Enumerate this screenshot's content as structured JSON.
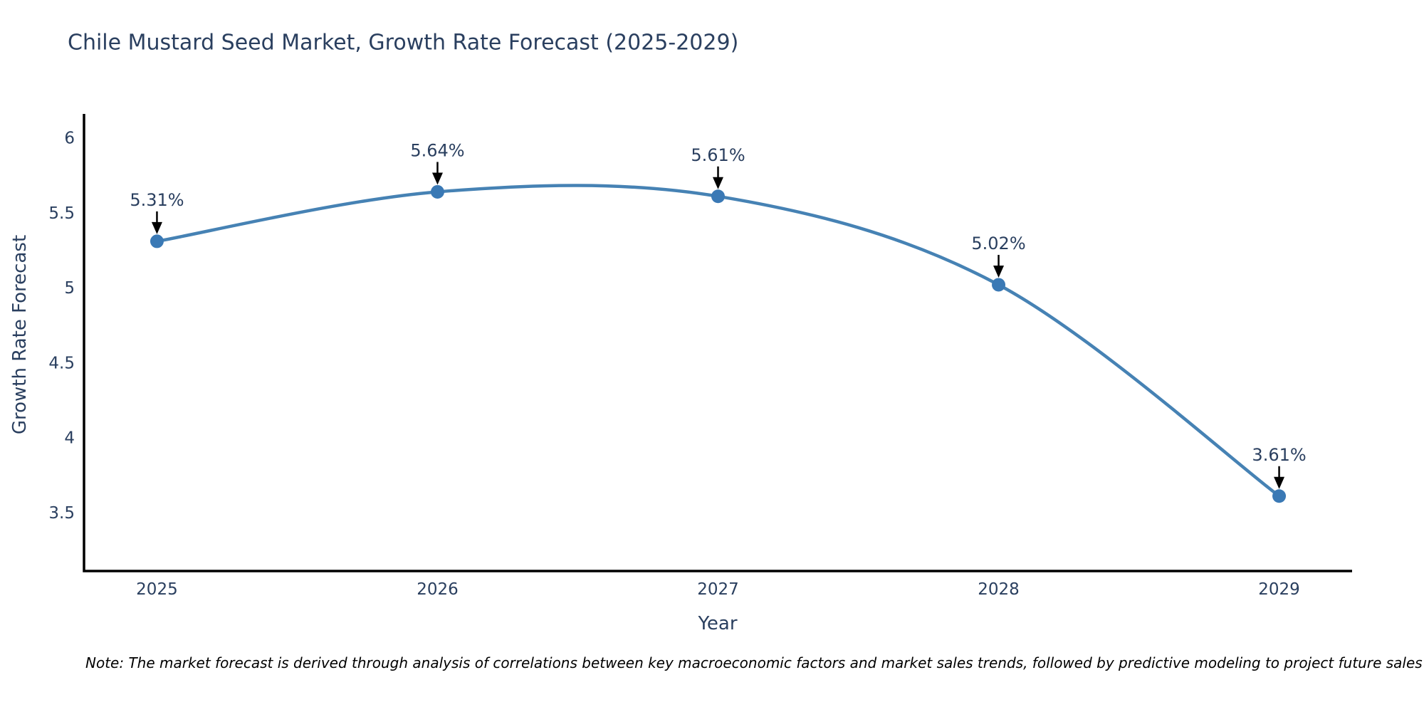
{
  "title": {
    "text": "Chile Mustard Seed Market, Growth Rate Forecast (2025-2029)",
    "color": "#2a3f5f"
  },
  "chart_data": {
    "type": "line",
    "title": "Chile Mustard Seed Market, Growth Rate Forecast (2025-2029)",
    "xlabel": "Year",
    "ylabel": "Growth Rate Forecast",
    "x": [
      2025,
      2026,
      2027,
      2028,
      2029
    ],
    "series": [
      {
        "name": "Growth Rate Forecast",
        "values": [
          5.31,
          5.64,
          5.61,
          5.02,
          3.61
        ]
      }
    ],
    "point_labels": [
      "5.31%",
      "5.64%",
      "5.61%",
      "5.02%",
      "3.61%"
    ],
    "x_tick_labels": [
      "2025",
      "2026",
      "2027",
      "2028",
      "2029"
    ],
    "y_tick_values": [
      6,
      5.5,
      5,
      4.5,
      4,
      3.5
    ],
    "y_tick_labels": [
      "6",
      "5.5",
      "5",
      "4.5",
      "4",
      "3.5"
    ],
    "xlim": [
      2024.74,
      2029.26
    ],
    "ylim": [
      3.11,
      6.16
    ],
    "grid": false,
    "legend": "none",
    "line_shape": "spline",
    "colors": {
      "line": "#4682b4",
      "marker": "#3a79b5",
      "axis": "#000000",
      "tick_text": "#2a3f5f",
      "annotation_text": "#2a3f5f",
      "arrow": "#000000"
    }
  },
  "footer": {
    "note": "Note: The market forecast is derived through analysis of correlations between key macroeconomic factors and market sales trends, followed by predictive modeling to project future sales"
  }
}
